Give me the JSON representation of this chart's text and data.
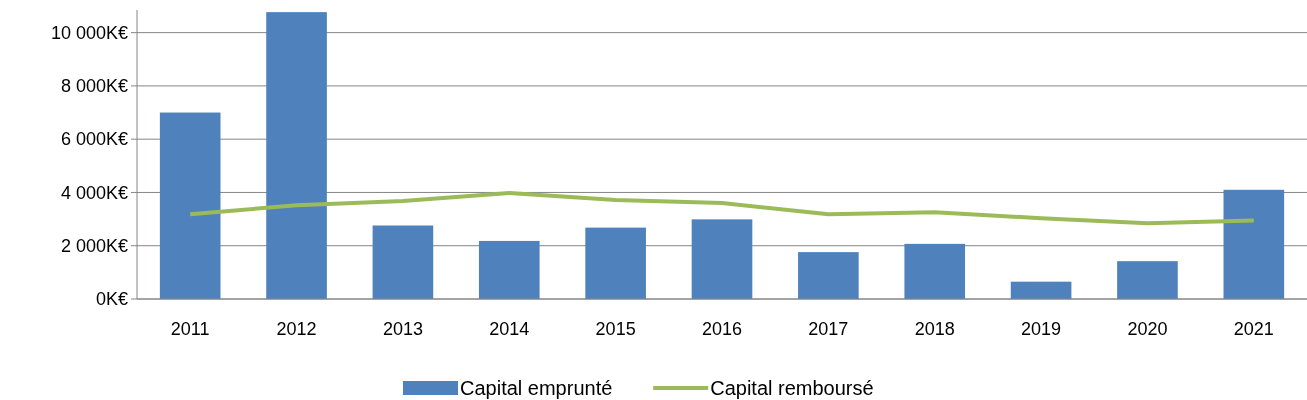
{
  "chart_data": {
    "type": "bar",
    "categories": [
      "2011",
      "2012",
      "2013",
      "2014",
      "2015",
      "2016",
      "2017",
      "2018",
      "2019",
      "2020",
      "2021"
    ],
    "series": [
      {
        "name": "Capital emprunté",
        "color": "#4f81bd",
        "values": [
          7000,
          10770,
          2760,
          2180,
          2680,
          2990,
          1760,
          2070,
          650,
          1420,
          4100
        ]
      },
      {
        "name": "Capital remboursé",
        "type": "line",
        "color": "#9bbb59",
        "values": [
          3180,
          3520,
          3680,
          3980,
          3720,
          3600,
          3180,
          3260,
          3030,
          2840,
          2950
        ]
      }
    ],
    "ylim": [
      0,
      10850
    ],
    "yticks": [
      {
        "value": 0,
        "label": "0K€"
      },
      {
        "value": 2000,
        "label": "2 000K€"
      },
      {
        "value": 4000,
        "label": "4 000K€"
      },
      {
        "value": 6000,
        "label": "6 000K€"
      },
      {
        "value": 8000,
        "label": "8 000K€"
      },
      {
        "value": 10000,
        "label": "10 000K€"
      }
    ],
    "grid": "y",
    "legend": "bottom",
    "marker": "none",
    "line_style": "solid"
  }
}
